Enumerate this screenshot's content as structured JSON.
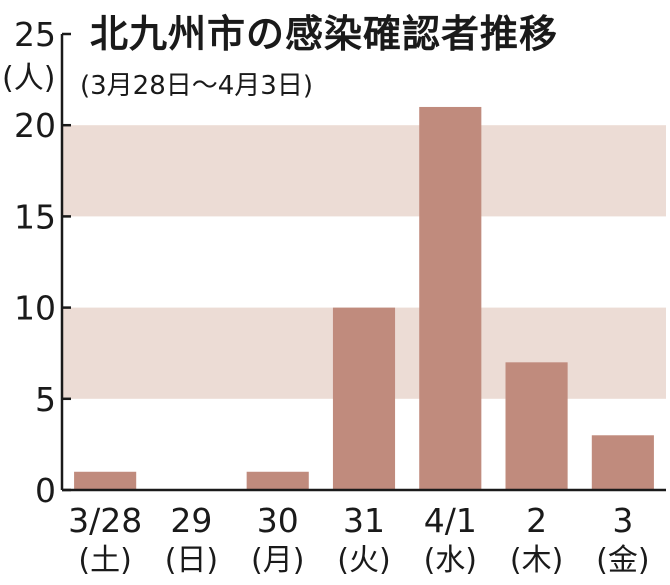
{
  "chart_data": {
    "type": "bar",
    "title": "北九州市の感染確認者推移",
    "subtitle": "(3月28日〜4月3日)",
    "ylabel_unit": "(人)",
    "ylim": [
      0,
      25
    ],
    "yticks": [
      "0",
      "5",
      "10",
      "15",
      "20",
      "25"
    ],
    "categories": [
      "3/28",
      "29",
      "30",
      "31",
      "4/1",
      "2",
      "3"
    ],
    "weekdays": [
      "(土)",
      "(日)",
      "(月)",
      "(火)",
      "(水)",
      "(木)",
      "(金)"
    ],
    "values": [
      1,
      0,
      1,
      10,
      21,
      7,
      3
    ],
    "shaded_bands": [
      [
        5,
        10
      ],
      [
        15,
        20
      ]
    ],
    "colors": {
      "bar": "#c08b7d",
      "band": "#ecdcd5",
      "axis": "#1a1a1a"
    }
  }
}
